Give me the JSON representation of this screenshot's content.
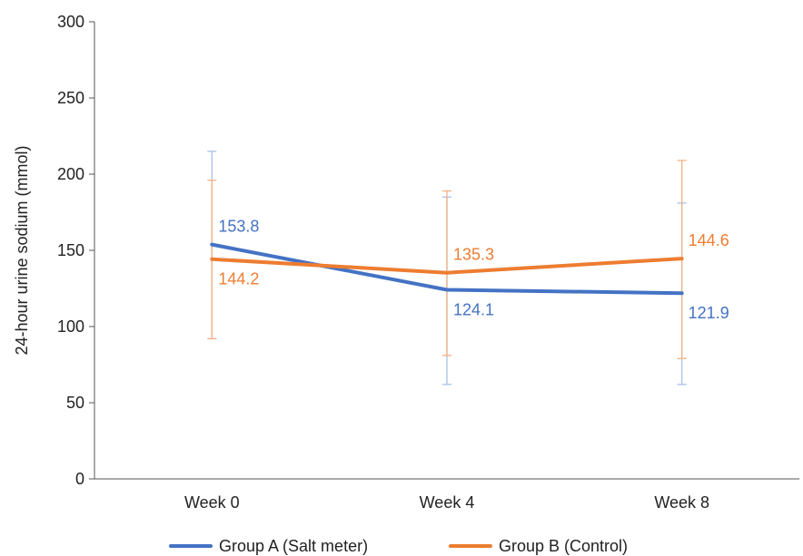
{
  "chart_data": {
    "type": "line",
    "categories": [
      "Week 0",
      "Week 4",
      "Week 8"
    ],
    "ylabel": "24-hour urine sodium (mmol)",
    "ylim": [
      0,
      300
    ],
    "yticks": [
      "0",
      "50",
      "100",
      "150",
      "200",
      "250",
      "300"
    ],
    "grid": false,
    "legend_position": "bottom",
    "series": [
      {
        "name": "Group A (Salt meter)",
        "color": "#4472C4",
        "error_color": "#A9C1E6",
        "values": [
          153.8,
          124.1,
          121.9
        ],
        "labels": [
          "153.8",
          "124.1",
          "121.9"
        ],
        "error_low": [
          92,
          62,
          62
        ],
        "error_high": [
          215,
          185,
          181
        ]
      },
      {
        "name": "Group B (Control)",
        "color": "#ED7D31",
        "error_color": "#F4B183",
        "values": [
          144.2,
          135.3,
          144.6
        ],
        "labels": [
          "144.2",
          "135.3",
          "144.6"
        ],
        "error_low": [
          92,
          81,
          79
        ],
        "error_high": [
          196,
          189,
          209
        ]
      }
    ]
  }
}
